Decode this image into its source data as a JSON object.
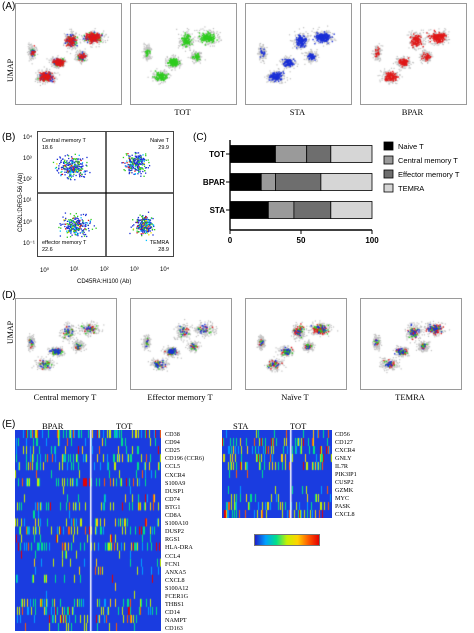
{
  "panels": {
    "a": "(A)",
    "b": "(B)",
    "c": "(C)",
    "d": "(D)",
    "e": "(E)"
  },
  "umap_label": "UMAP",
  "panel_a": {
    "captions": [
      "",
      "TOT",
      "STA",
      "BPAR"
    ]
  },
  "panel_b": {
    "y_label": "CD62L:DREG-56 (Ab)",
    "x_label": "CD45RA:HI100 (Ab)",
    "quadrants": [
      {
        "name": "Central memory T",
        "value": "18.6"
      },
      {
        "name": "Naive T",
        "value": "29.9"
      },
      {
        "name": "effector memory T",
        "value": "22.6"
      },
      {
        "name": "TEMRA",
        "value": "28.9"
      }
    ],
    "y_ticks": [
      "10⁴",
      "10³",
      "10²",
      "10¹",
      "10⁰",
      "10⁻¹"
    ],
    "x_ticks": [
      "10⁰",
      "10¹",
      "10²",
      "10³",
      "10⁴"
    ]
  },
  "panel_c": {
    "chart_data": {
      "type": "bar",
      "orientation": "horizontal",
      "stacked": true,
      "categories": [
        "TOT",
        "BPAR",
        "STA"
      ],
      "series": [
        {
          "name": "Naive T",
          "color": "#000000",
          "values": [
            32,
            22,
            27
          ]
        },
        {
          "name": "Central memory T",
          "color": "#9a9a9a",
          "values": [
            22,
            10,
            18
          ]
        },
        {
          "name": "Effector memory T",
          "color": "#6e6e6e",
          "values": [
            17,
            32,
            26
          ]
        },
        {
          "name": "TEMRA",
          "color": "#d6d6d6",
          "values": [
            29,
            36,
            29
          ]
        }
      ],
      "x_ticks": [
        "0",
        "50",
        "100"
      ],
      "xlim": [
        0,
        100
      ]
    }
  },
  "panel_d": {
    "captions": [
      "Central memory T",
      "Effector memory T",
      "Naïve T",
      "TEMRA"
    ]
  },
  "panel_e": {
    "left": {
      "groups": [
        "BPAR",
        "TOT"
      ],
      "genes": [
        "CD38",
        "CD94",
        "CD25",
        "CD196 (CCR6)",
        "CCL5",
        "CXCR4",
        "S100A9",
        "DUSP1",
        "CD74",
        "BTG1",
        "CD8A",
        "S100A10",
        "DUSP2",
        "RGS1",
        "HLA-DRA",
        "CCL4",
        "FCN1",
        "ANXA5",
        "CXCL8",
        "S100A12",
        "FCER1G",
        "THBS1",
        "CD14",
        "NAMPT",
        "CD163"
      ]
    },
    "right": {
      "groups": [
        "STA",
        "TOT"
      ],
      "genes": [
        "CD56",
        "CD127",
        "CXCR4",
        "GNLY",
        "IL7R",
        "PIK3IP1",
        "CUSP2",
        "GZMK",
        "MYC",
        "PASK",
        "CXCL8"
      ]
    },
    "colorbar": [
      "#1f1fc8",
      "#00a0ff",
      "#00e08a",
      "#c8f000",
      "#ffd200",
      "#ff5a00",
      "#e60000"
    ]
  },
  "colors": {
    "blue": "#1a2fd6",
    "green": "#2ecc1e",
    "red": "#e01818",
    "grey": "#bfbfbf",
    "heat_bg": "#1a3ce0"
  }
}
